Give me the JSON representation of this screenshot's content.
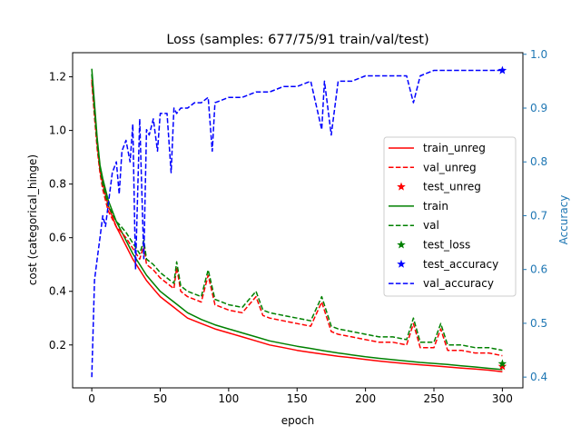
{
  "chart_data": {
    "type": "line",
    "title": "Loss (samples: 677/75/91 train/val/test)",
    "xlabel": "epoch",
    "ylabel": "cost (categorical_hinge)",
    "y2label": "Accuracy",
    "xlim": [
      -14,
      315
    ],
    "ylim": [
      0.04,
      1.29
    ],
    "y2lim": [
      0.38,
      1.003
    ],
    "xticks": [
      0,
      50,
      100,
      150,
      200,
      250,
      300
    ],
    "yticks": [
      0.2,
      0.4,
      0.6,
      0.8,
      1.0,
      1.2
    ],
    "yticklabels": [
      "0.2",
      "0.4",
      "0.6",
      "0.8",
      "1.0",
      "1.2"
    ],
    "y2ticks": [
      0.4,
      0.5,
      0.6,
      0.7,
      0.8,
      0.9,
      1.0
    ],
    "y2ticklabels": [
      "0.4",
      "0.5",
      "0.6",
      "0.7",
      "0.8",
      "0.9",
      "1.0"
    ],
    "grid": false,
    "legend_position": "center-right",
    "colors": {
      "red": "#ff0000",
      "green": "#008000",
      "blue": "#0000ff",
      "axis2": "#1f77b4"
    },
    "legend": [
      {
        "label": "train_unreg",
        "color": "#ff0000",
        "style": "solid"
      },
      {
        "label": "val_unreg",
        "color": "#ff0000",
        "style": "dashed"
      },
      {
        "label": "test_unreg",
        "color": "#ff0000",
        "style": "star"
      },
      {
        "label": "train",
        "color": "#008000",
        "style": "solid"
      },
      {
        "label": "val",
        "color": "#008000",
        "style": "dashed"
      },
      {
        "label": "test_loss",
        "color": "#008000",
        "style": "star"
      },
      {
        "label": "test_accuracy",
        "color": "#0000ff",
        "style": "star"
      },
      {
        "label": "val_accuracy",
        "color": "#0000ff",
        "style": "dashed"
      }
    ],
    "series": [
      {
        "name": "train_unreg",
        "axis": "left",
        "color": "#ff0000",
        "style": "solid",
        "x": [
          0,
          2,
          4,
          6,
          8,
          10,
          12,
          15,
          18,
          20,
          25,
          30,
          35,
          40,
          45,
          50,
          55,
          60,
          65,
          70,
          80,
          90,
          100,
          110,
          120,
          130,
          140,
          150,
          160,
          170,
          180,
          190,
          200,
          210,
          220,
          230,
          240,
          250,
          260,
          270,
          280,
          290,
          300
        ],
        "y": [
          1.19,
          1.08,
          0.95,
          0.85,
          0.8,
          0.76,
          0.72,
          0.68,
          0.64,
          0.62,
          0.57,
          0.52,
          0.48,
          0.44,
          0.41,
          0.38,
          0.36,
          0.34,
          0.32,
          0.3,
          0.28,
          0.26,
          0.245,
          0.23,
          0.215,
          0.2,
          0.19,
          0.18,
          0.172,
          0.165,
          0.158,
          0.152,
          0.146,
          0.14,
          0.135,
          0.13,
          0.126,
          0.122,
          0.118,
          0.114,
          0.11,
          0.106,
          0.1
        ]
      },
      {
        "name": "train",
        "axis": "left",
        "color": "#008000",
        "style": "solid",
        "x": [
          0,
          2,
          4,
          6,
          8,
          10,
          12,
          15,
          18,
          20,
          25,
          30,
          35,
          40,
          45,
          50,
          55,
          60,
          65,
          70,
          80,
          90,
          100,
          110,
          120,
          130,
          140,
          150,
          160,
          170,
          180,
          190,
          200,
          210,
          220,
          230,
          240,
          250,
          260,
          270,
          280,
          290,
          300
        ],
        "y": [
          1.23,
          1.1,
          0.97,
          0.87,
          0.82,
          0.78,
          0.74,
          0.7,
          0.66,
          0.64,
          0.59,
          0.54,
          0.5,
          0.46,
          0.43,
          0.4,
          0.38,
          0.36,
          0.34,
          0.32,
          0.295,
          0.275,
          0.26,
          0.245,
          0.23,
          0.215,
          0.205,
          0.195,
          0.187,
          0.178,
          0.17,
          0.163,
          0.156,
          0.15,
          0.145,
          0.14,
          0.135,
          0.131,
          0.127,
          0.122,
          0.118,
          0.113,
          0.108
        ]
      },
      {
        "name": "val_unreg",
        "axis": "left",
        "color": "#ff0000",
        "style": "dashed",
        "x": [
          0,
          2,
          4,
          6,
          8,
          10,
          12,
          15,
          18,
          20,
          25,
          30,
          35,
          38,
          40,
          45,
          50,
          55,
          60,
          62,
          65,
          70,
          80,
          85,
          90,
          100,
          110,
          120,
          125,
          130,
          140,
          150,
          160,
          168,
          175,
          180,
          190,
          200,
          210,
          220,
          230,
          235,
          240,
          250,
          255,
          260,
          270,
          280,
          290,
          300
        ],
        "y": [
          1.18,
          1.05,
          0.93,
          0.84,
          0.78,
          0.74,
          0.7,
          0.67,
          0.64,
          0.63,
          0.6,
          0.56,
          0.52,
          0.57,
          0.5,
          0.48,
          0.45,
          0.43,
          0.41,
          0.49,
          0.4,
          0.38,
          0.36,
          0.46,
          0.35,
          0.33,
          0.32,
          0.38,
          0.31,
          0.3,
          0.29,
          0.28,
          0.27,
          0.36,
          0.25,
          0.24,
          0.23,
          0.22,
          0.21,
          0.21,
          0.2,
          0.28,
          0.19,
          0.19,
          0.26,
          0.18,
          0.18,
          0.17,
          0.17,
          0.16
        ]
      },
      {
        "name": "val",
        "axis": "left",
        "color": "#008000",
        "style": "dashed",
        "x": [
          0,
          2,
          4,
          6,
          8,
          10,
          12,
          15,
          18,
          20,
          25,
          30,
          35,
          38,
          40,
          45,
          50,
          55,
          60,
          62,
          65,
          70,
          80,
          85,
          90,
          100,
          110,
          120,
          125,
          130,
          140,
          150,
          160,
          168,
          175,
          180,
          190,
          200,
          210,
          220,
          230,
          235,
          240,
          250,
          255,
          260,
          270,
          280,
          290,
          300
        ],
        "y": [
          1.21,
          1.07,
          0.95,
          0.86,
          0.8,
          0.76,
          0.72,
          0.69,
          0.66,
          0.65,
          0.62,
          0.58,
          0.54,
          0.59,
          0.52,
          0.5,
          0.47,
          0.45,
          0.43,
          0.51,
          0.42,
          0.4,
          0.38,
          0.48,
          0.37,
          0.35,
          0.34,
          0.4,
          0.33,
          0.32,
          0.31,
          0.3,
          0.29,
          0.38,
          0.27,
          0.26,
          0.25,
          0.24,
          0.23,
          0.23,
          0.22,
          0.3,
          0.21,
          0.21,
          0.28,
          0.2,
          0.2,
          0.19,
          0.19,
          0.18
        ]
      },
      {
        "name": "val_accuracy",
        "axis": "right",
        "color": "#0000ff",
        "style": "dashed",
        "x": [
          0,
          2,
          4,
          6,
          8,
          10,
          12,
          15,
          18,
          20,
          22,
          25,
          28,
          30,
          32,
          35,
          38,
          40,
          42,
          45,
          48,
          50,
          55,
          58,
          60,
          62,
          65,
          70,
          75,
          80,
          85,
          88,
          90,
          100,
          110,
          120,
          130,
          140,
          150,
          160,
          168,
          170,
          175,
          180,
          190,
          200,
          210,
          220,
          230,
          235,
          240,
          250,
          260,
          270,
          280,
          290,
          300
        ],
        "y": [
          0.4,
          0.58,
          0.62,
          0.66,
          0.7,
          0.68,
          0.72,
          0.78,
          0.8,
          0.74,
          0.82,
          0.84,
          0.8,
          0.87,
          0.6,
          0.88,
          0.62,
          0.86,
          0.85,
          0.88,
          0.82,
          0.89,
          0.89,
          0.78,
          0.9,
          0.89,
          0.9,
          0.9,
          0.91,
          0.91,
          0.92,
          0.82,
          0.91,
          0.92,
          0.92,
          0.93,
          0.93,
          0.94,
          0.94,
          0.95,
          0.86,
          0.95,
          0.85,
          0.95,
          0.95,
          0.96,
          0.96,
          0.96,
          0.96,
          0.91,
          0.96,
          0.97,
          0.97,
          0.97,
          0.97,
          0.97,
          0.97
        ]
      }
    ],
    "points": [
      {
        "name": "test_unreg",
        "axis": "left",
        "x": 300,
        "y": 0.12,
        "color": "#ff0000"
      },
      {
        "name": "test_loss",
        "axis": "left",
        "x": 300,
        "y": 0.13,
        "color": "#008000"
      },
      {
        "name": "test_accuracy",
        "axis": "right",
        "x": 300,
        "y": 0.97,
        "color": "#0000ff"
      }
    ]
  }
}
